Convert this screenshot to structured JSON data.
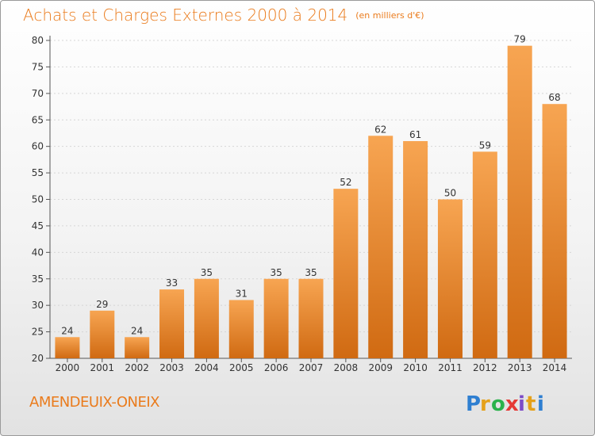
{
  "header": {
    "title": "Achats et Charges Externes 2000 à 2014",
    "unit": "(en milliers d'€)"
  },
  "commune": "AMENDEUIX-ONEIX",
  "brand": {
    "name": "Proxiti",
    "letters": [
      "P",
      "r",
      "o",
      "x",
      "i",
      "t",
      "i"
    ]
  },
  "colors": {
    "accent": "#ea7b1c",
    "bar_light": "#f7a552",
    "bar_dark": "#d06a12",
    "axis": "#555555"
  },
  "chart_data": {
    "type": "bar",
    "title": "Achats et Charges Externes 2000 à 2014",
    "subtitle": "(en milliers d'€)",
    "categories": [
      "2000",
      "2001",
      "2002",
      "2003",
      "2004",
      "2005",
      "2006",
      "2007",
      "2008",
      "2009",
      "2010",
      "2011",
      "2012",
      "2013",
      "2014"
    ],
    "values": [
      24,
      29,
      24,
      33,
      35,
      31,
      35,
      35,
      52,
      62,
      61,
      50,
      59,
      79,
      68
    ],
    "ylim": [
      20,
      80
    ],
    "yticks": [
      20,
      25,
      30,
      35,
      40,
      45,
      50,
      55,
      60,
      65,
      70,
      75,
      80
    ],
    "xlabel": "",
    "ylabel": "",
    "grid": true,
    "data_labels": true
  }
}
